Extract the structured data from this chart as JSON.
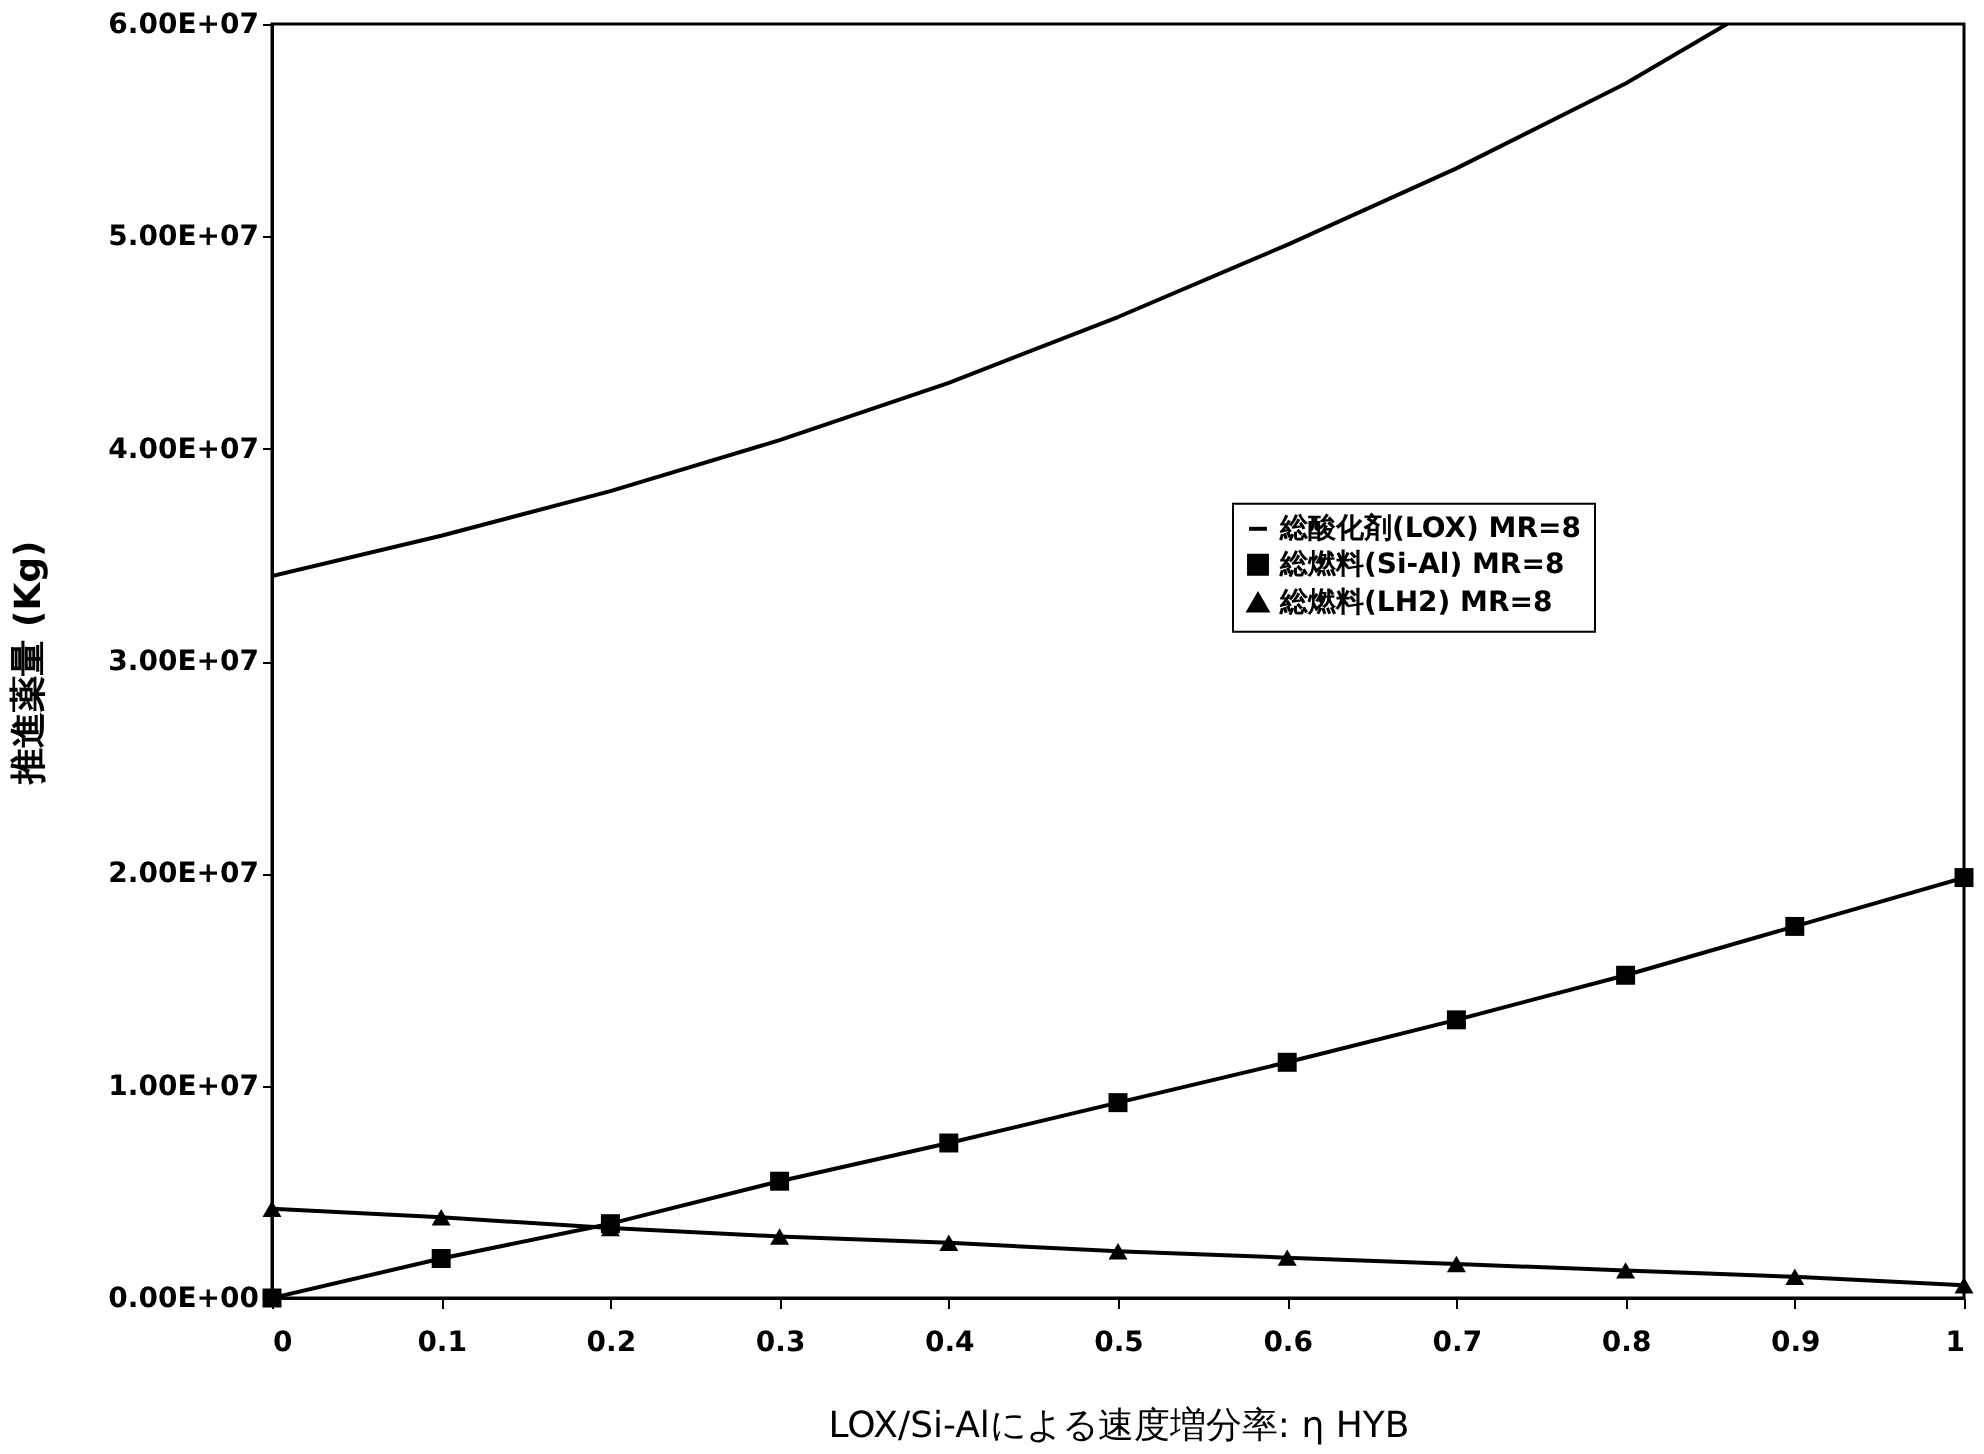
{
  "chart_data": {
    "type": "line",
    "xlabel": "LOX/Si-Alによる速度増分率: η HYB",
    "ylabel": "推進薬量 (Kg)",
    "x": [
      0,
      0.1,
      0.2,
      0.3,
      0.4,
      0.5,
      0.6,
      0.7,
      0.8,
      0.9,
      1
    ],
    "series": [
      {
        "name": "総酸化剤(LOX) MR=8",
        "color": "#000000",
        "marker": "none",
        "x": [
          0,
          0.1,
          0.2,
          0.3,
          0.4,
          0.5,
          0.6,
          0.7,
          0.8,
          0.86
        ],
        "values": [
          34000000,
          35900000,
          38000000,
          40400000,
          43100000,
          46200000,
          49600000,
          53200000,
          57200000,
          60000000
        ]
      },
      {
        "name": "総燃料(Si-Al) MR=8",
        "color": "#000000",
        "marker": "square",
        "values": [
          0,
          1860000,
          3500000,
          5500000,
          7300000,
          9200000,
          11100000,
          13100000,
          15200000,
          17500000,
          19800000
        ]
      },
      {
        "name": "総燃料(LH2) MR=8",
        "color": "#000000",
        "marker": "triangle",
        "values": [
          4200000,
          3800000,
          3300000,
          2900000,
          2600000,
          2200000,
          1900000,
          1600000,
          1300000,
          1000000,
          600000
        ]
      }
    ],
    "xlim": [
      0,
      1
    ],
    "xticks": [
      0,
      0.1,
      0.2,
      0.3,
      0.4,
      0.5,
      0.6,
      0.7,
      0.8,
      0.9,
      1
    ],
    "ylim": [
      0,
      60000000
    ],
    "yticks": [
      {
        "value": 0,
        "label": "0.00E+00"
      },
      {
        "value": 10000000,
        "label": "1.00E+07"
      },
      {
        "value": 20000000,
        "label": "2.00E+07"
      },
      {
        "value": 30000000,
        "label": "3.00E+07"
      },
      {
        "value": 40000000,
        "label": "4.00E+07"
      },
      {
        "value": 50000000,
        "label": "5.00E+07"
      },
      {
        "value": 60000000,
        "label": "6.00E+07"
      }
    ],
    "grid": false,
    "legend": "right",
    "line_style": "solid"
  }
}
